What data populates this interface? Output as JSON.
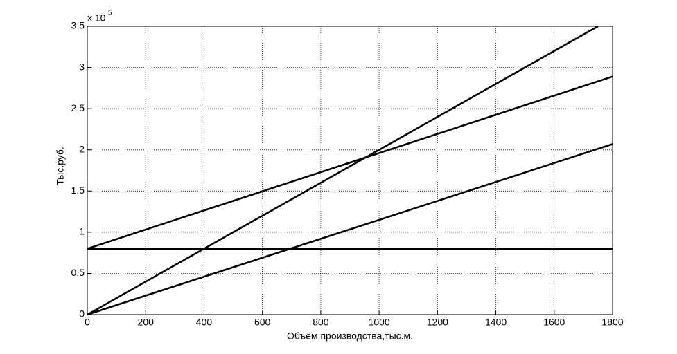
{
  "chart_data": {
    "type": "line",
    "xlabel": "Объём производства,тыс.м.",
    "ylabel": "Тыс.руб.",
    "y_multiplier": {
      "base": "x 10",
      "power": "5"
    },
    "xlim": [
      0,
      1800
    ],
    "xticks": [
      0,
      200,
      400,
      600,
      800,
      1000,
      1200,
      1400,
      1600,
      1800
    ],
    "ylim": [
      0,
      3.5
    ],
    "yticks": [
      0,
      0.5,
      1,
      1.5,
      2,
      2.5,
      3,
      3.5
    ],
    "grid": true,
    "series": [
      {
        "color": "#000000",
        "x": [
          0,
          1800
        ],
        "values": [
          0.8,
          0.8
        ]
      },
      {
        "color": "#000000",
        "x": [
          0,
          1750
        ],
        "values": [
          0,
          3.5
        ]
      },
      {
        "color": "#000000",
        "x": [
          0,
          1800
        ],
        "values": [
          0.8,
          2.89
        ]
      },
      {
        "color": "#000000",
        "x": [
          0,
          1800
        ],
        "values": [
          0,
          2.07
        ]
      }
    ]
  }
}
